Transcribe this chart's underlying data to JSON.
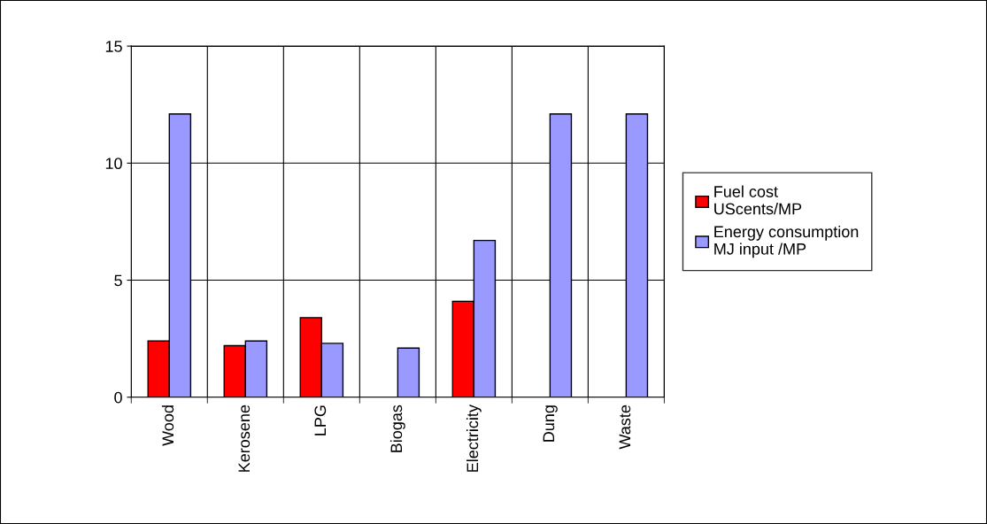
{
  "chart_data": {
    "type": "bar",
    "categories": [
      "Wood",
      "Kerosene",
      "LPG",
      "Biogas",
      "Electricity",
      "Dung",
      "Waste"
    ],
    "series": [
      {
        "name": "Fuel cost\nUScents/MP",
        "color": "#ff0000",
        "values": [
          2.4,
          2.2,
          3.4,
          null,
          4.1,
          null,
          null
        ]
      },
      {
        "name": "Energy consumption\nMJ input /MP",
        "color": "#9999ff",
        "values": [
          12.1,
          2.4,
          2.3,
          2.1,
          6.7,
          12.1,
          12.1
        ]
      }
    ],
    "ylim": [
      0,
      15
    ],
    "yticks": [
      0,
      5,
      10,
      15
    ],
    "grid": true,
    "legend": "right"
  }
}
